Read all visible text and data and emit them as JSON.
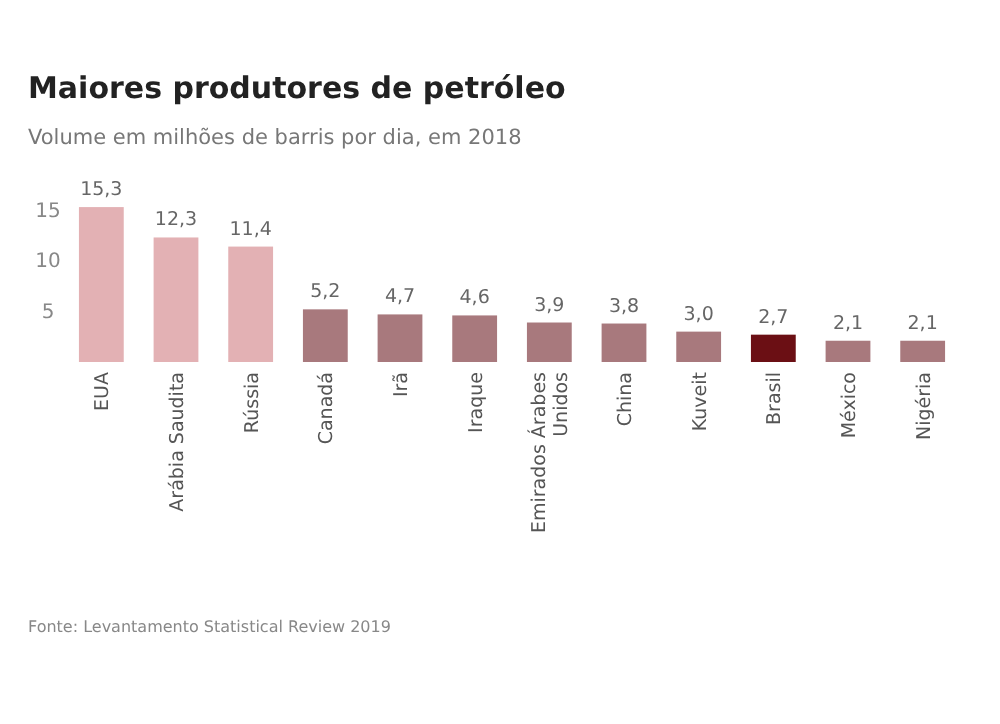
{
  "chart_data": {
    "type": "bar",
    "title": "Maiores produtores de petróleo",
    "subtitle": "Volume em milhões de barris por dia, em 2018",
    "categories": [
      "EUA",
      "Arábia Saudita",
      "Rússia",
      "Canadá",
      "Irã",
      "Iraque",
      "Emirados Árabes Unidos",
      "China",
      "Kuveit",
      "Brasil",
      "México",
      "Nigéria"
    ],
    "values": [
      15.3,
      12.3,
      11.4,
      5.2,
      4.7,
      4.6,
      3.9,
      3.8,
      3.0,
      2.7,
      2.1,
      2.1
    ],
    "value_labels": [
      "15,3",
      "12,3",
      "11,4",
      "5,2",
      "4,7",
      "4,6",
      "3,9",
      "3,8",
      "3,0",
      "2,7",
      "2,1",
      "2,1"
    ],
    "colors": [
      "#e3b1b4",
      "#e3b1b4",
      "#e3b1b4",
      "#a8797d",
      "#a8797d",
      "#a8797d",
      "#a8797d",
      "#a8797d",
      "#a8797d",
      "#6b0f14",
      "#a8797d",
      "#a8797d"
    ],
    "ylim": [
      0,
      16
    ],
    "yticks": [
      5,
      10,
      15
    ],
    "grid": false,
    "annotations": [
      "Fonte: Levantamento Statistical Review 2019"
    ]
  }
}
